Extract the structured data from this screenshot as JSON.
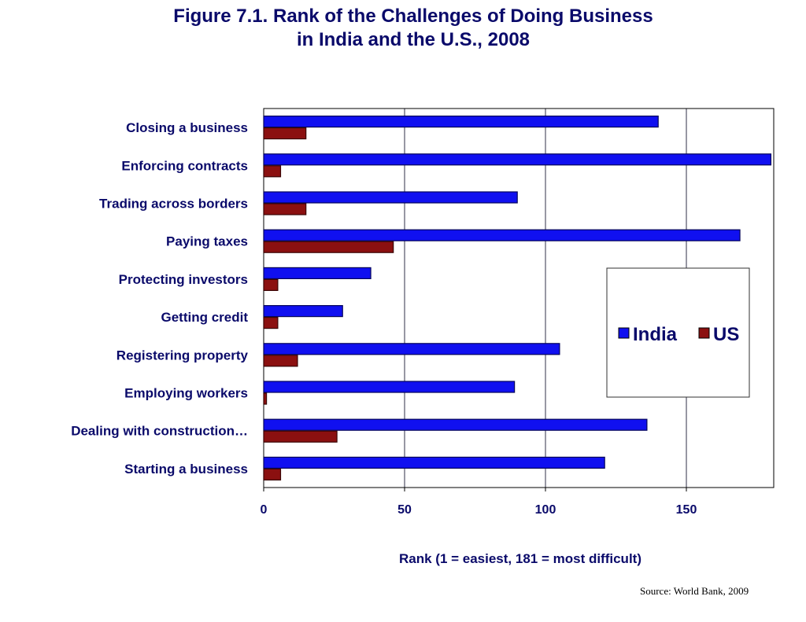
{
  "figure": {
    "title_line1": "Figure 7.1.  Rank of the Challenges of Doing Business",
    "title_line2": "in India and the U.S., 2008",
    "source": "Source:  World Bank, 2009"
  },
  "colors": {
    "title": "#0a0a6a",
    "india": "#1010f0",
    "us": "#8b1010",
    "gridline": "#303048",
    "frame": "#000000"
  },
  "chart_data": {
    "type": "bar",
    "orientation": "horizontal",
    "categories": [
      "Closing a business",
      "Enforcing contracts",
      "Trading across borders",
      "Paying taxes",
      "Protecting investors",
      "Getting credit",
      "Registering property",
      "Employing workers",
      "Dealing with construction…",
      "Starting a business"
    ],
    "series": [
      {
        "name": "India",
        "values": [
          140,
          180,
          90,
          169,
          38,
          28,
          105,
          89,
          136,
          121
        ]
      },
      {
        "name": "US",
        "values": [
          15,
          6,
          15,
          46,
          5,
          5,
          12,
          1,
          26,
          6
        ]
      }
    ],
    "xlabel": "Rank (1 = easiest,  181 = most difficult)",
    "ylabel": "",
    "xlim": [
      0,
      181
    ],
    "x_ticks": [
      "0",
      "50",
      "100",
      "150"
    ],
    "grid": true,
    "legend_position": "right"
  }
}
